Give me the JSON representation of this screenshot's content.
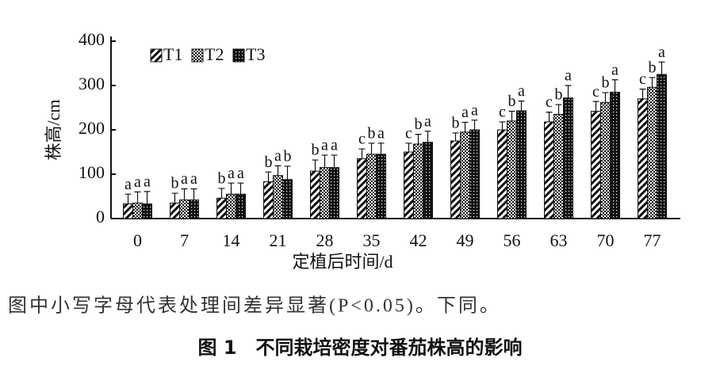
{
  "chart_data": {
    "type": "bar",
    "y_label": "株高/cm",
    "x_label": "定植后时间/d",
    "note": "图中小写字母代表处理间差异显著(P<0.05)。下同。",
    "caption": "图 1　不同栽培密度对番茄株高的影响",
    "categories": [
      "0",
      "7",
      "14",
      "21",
      "28",
      "35",
      "42",
      "49",
      "56",
      "63",
      "70",
      "77"
    ],
    "series": [
      {
        "name": "T1",
        "pattern": "hatch",
        "values": [
          33,
          35,
          46,
          83,
          107,
          135,
          150,
          175,
          200,
          218,
          242,
          270
        ],
        "errors": [
          22,
          22,
          22,
          22,
          25,
          22,
          20,
          18,
          18,
          22,
          22,
          22
        ],
        "letters": [
          "a",
          "b",
          "b",
          "b",
          "b",
          "c",
          "c",
          "b",
          "c",
          "c",
          "c",
          "c"
        ]
      },
      {
        "name": "T2",
        "pattern": "check",
        "values": [
          35,
          42,
          55,
          97,
          115,
          145,
          168,
          195,
          220,
          235,
          262,
          296
        ],
        "errors": [
          25,
          25,
          25,
          22,
          28,
          25,
          22,
          22,
          22,
          22,
          22,
          22
        ],
        "letters": [
          "a",
          "a",
          "a",
          "a",
          "a",
          "b",
          "b",
          "a",
          "b",
          "b",
          "b",
          "b"
        ]
      },
      {
        "name": "T3",
        "pattern": "dots",
        "values": [
          33,
          42,
          55,
          88,
          115,
          145,
          172,
          200,
          243,
          272,
          285,
          325
        ],
        "errors": [
          28,
          25,
          25,
          30,
          28,
          25,
          25,
          22,
          22,
          28,
          28,
          28
        ],
        "letters": [
          "a",
          "a",
          "a",
          "b",
          "a",
          "a",
          "a",
          "a",
          "a",
          "a",
          "a",
          "a"
        ]
      }
    ],
    "ylim": [
      0,
      400
    ],
    "yticks": [
      0,
      100,
      200,
      300,
      400
    ],
    "legend": "upper left"
  }
}
